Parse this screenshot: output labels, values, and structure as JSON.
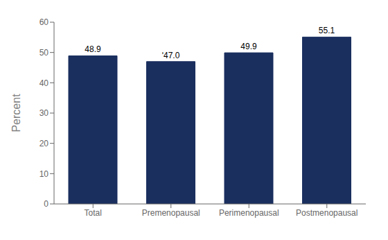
{
  "chart_data": {
    "type": "bar",
    "categories": [
      "Total",
      "Premenopausal",
      "Perimenopausal",
      "Postmenopausal"
    ],
    "values": [
      48.9,
      47.0,
      49.9,
      55.1
    ],
    "value_labels": [
      "48.9",
      "ʹ47.0",
      "49.9",
      "55.1"
    ],
    "color": "#1a2f5e",
    "ylabel": "Percent",
    "ylim": [
      0,
      60
    ],
    "yticks": [
      0,
      10,
      20,
      30,
      40,
      50,
      60
    ],
    "data_labels": true
  }
}
